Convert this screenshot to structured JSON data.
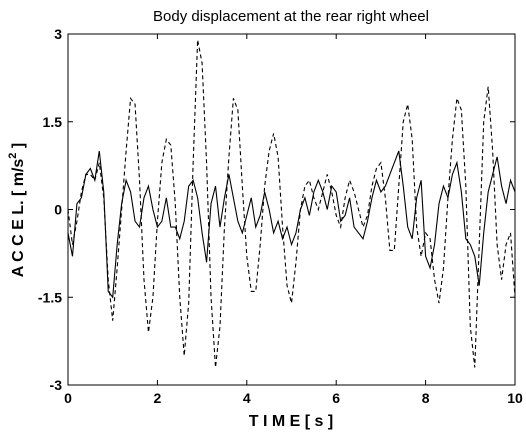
{
  "chart_data": {
    "type": "line",
    "title": "Body displacement at the rear right wheel",
    "xlabel": "T I M E   [ s ]",
    "ylabel": "A C C E L.  [ m/s",
    "ylabel_sup": "2",
    "ylabel_end": " ]",
    "xlim": [
      0,
      10
    ],
    "ylim": [
      -3,
      3
    ],
    "xticks": [
      0,
      2,
      4,
      6,
      8,
      10
    ],
    "yticks": [
      -3,
      -1.5,
      0,
      1.5,
      3
    ],
    "grid": false,
    "x": [
      0,
      0.1,
      0.2,
      0.3,
      0.4,
      0.5,
      0.6,
      0.7,
      0.8,
      0.9,
      1,
      1.1,
      1.2,
      1.3,
      1.4,
      1.5,
      1.6,
      1.7,
      1.8,
      1.9,
      2,
      2.1,
      2.2,
      2.3,
      2.4,
      2.5,
      2.6,
      2.7,
      2.8,
      2.9,
      3,
      3.1,
      3.2,
      3.3,
      3.4,
      3.5,
      3.6,
      3.7,
      3.8,
      3.9,
      4,
      4.1,
      4.2,
      4.3,
      4.4,
      4.5,
      4.6,
      4.7,
      4.8,
      4.9,
      5,
      5.1,
      5.2,
      5.3,
      5.4,
      5.5,
      5.6,
      5.7,
      5.8,
      5.9,
      6,
      6.1,
      6.2,
      6.3,
      6.4,
      6.5,
      6.6,
      6.7,
      6.8,
      6.9,
      7,
      7.1,
      7.2,
      7.3,
      7.4,
      7.5,
      7.6,
      7.7,
      7.8,
      7.9,
      8,
      8.1,
      8.2,
      8.3,
      8.4,
      8.5,
      8.6,
      8.7,
      8.8,
      8.9,
      9,
      9.1,
      9.2,
      9.3,
      9.4,
      9.5,
      9.6,
      9.7,
      9.8,
      9.9,
      10
    ],
    "series": [
      {
        "color": "#000000",
        "style": "dashed",
        "values": [
          0.0,
          -0.6,
          -0.2,
          0.3,
          0.6,
          0.6,
          0.5,
          0.8,
          0.2,
          -1.2,
          -1.9,
          -1.0,
          0.0,
          1.0,
          1.9,
          1.8,
          0.5,
          -1.2,
          -2.1,
          -1.5,
          -0.2,
          0.8,
          1.2,
          1.1,
          0.1,
          -1.5,
          -2.5,
          -1.6,
          0.8,
          2.9,
          2.5,
          0.8,
          -1.5,
          -2.7,
          -2.0,
          -0.3,
          0.9,
          1.9,
          1.7,
          0.4,
          -0.8,
          -1.4,
          -1.4,
          -0.6,
          0.4,
          1.0,
          1.3,
          0.9,
          -0.3,
          -1.3,
          -1.6,
          -0.9,
          0.0,
          0.4,
          0.5,
          0.2,
          0.0,
          0.3,
          0.6,
          0.3,
          -0.1,
          -0.3,
          0.2,
          0.5,
          0.3,
          0.0,
          -0.3,
          -0.1,
          0.4,
          0.7,
          0.8,
          0.2,
          -0.7,
          -0.7,
          0.4,
          1.5,
          1.8,
          1.2,
          -0.3,
          -0.8,
          -0.4,
          -0.5,
          -1.2,
          -1.6,
          -1.0,
          0.2,
          1.2,
          1.9,
          1.7,
          0.4,
          -2.0,
          -2.7,
          -0.6,
          1.5,
          2.1,
          1.0,
          -0.6,
          -1.2,
          -0.6,
          -0.4,
          -1.5
        ]
      },
      {
        "color": "#000000",
        "style": "solid",
        "values": [
          -0.4,
          -0.8,
          0.1,
          0.2,
          0.6,
          0.7,
          0.5,
          1.0,
          0.3,
          -1.4,
          -1.5,
          -0.6,
          0.1,
          0.5,
          0.3,
          -0.2,
          -0.3,
          0.2,
          0.4,
          0.0,
          -0.3,
          -0.2,
          0.2,
          -0.3,
          -0.3,
          -0.5,
          -0.2,
          0.4,
          0.5,
          0.2,
          -0.4,
          -0.9,
          0.1,
          0.4,
          -0.3,
          0.2,
          0.6,
          0.2,
          -0.2,
          -0.4,
          -0.1,
          0.2,
          -0.3,
          -0.1,
          0.3,
          0.0,
          -0.4,
          -0.2,
          -0.5,
          -0.3,
          -0.6,
          -0.4,
          0.0,
          0.2,
          -0.1,
          0.3,
          0.5,
          0.3,
          0.0,
          0.4,
          0.3,
          -0.2,
          -0.1,
          0.2,
          -0.3,
          -0.4,
          -0.5,
          -0.2,
          0.2,
          0.5,
          0.3,
          0.4,
          0.6,
          0.8,
          1.0,
          0.4,
          -0.3,
          -0.5,
          0.2,
          0.5,
          -0.8,
          -1.0,
          -0.6,
          0.1,
          0.4,
          0.2,
          0.6,
          0.8,
          0.3,
          -0.5,
          -0.6,
          -0.8,
          -1.3,
          -0.4,
          0.3,
          0.6,
          0.9,
          0.4,
          0.1,
          0.5,
          0.3
        ]
      }
    ]
  }
}
